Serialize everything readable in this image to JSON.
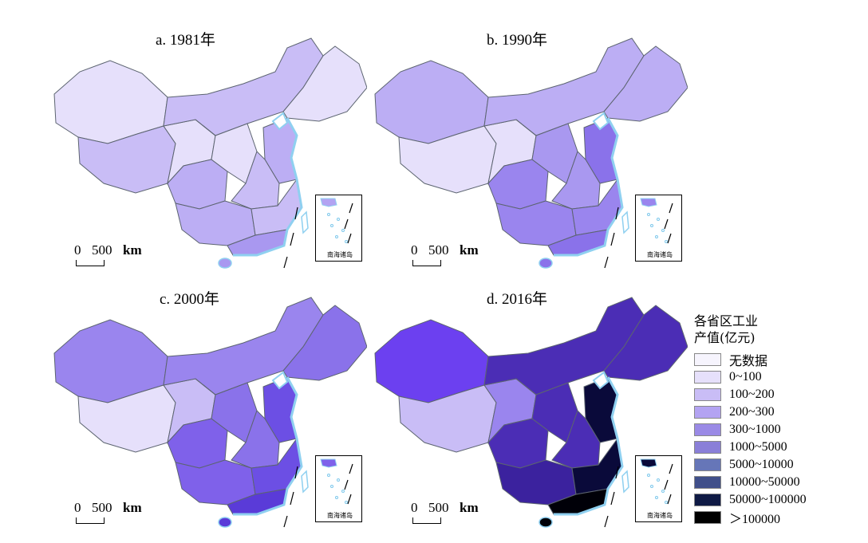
{
  "panels": [
    {
      "title": "a. 1981年",
      "fills": [
        "#e6e0fb",
        "#c9bdf6",
        "#e6e0fb",
        "#bcaef4",
        "#c9bdf6",
        "#e6e0fb",
        "#bcaef4",
        "#c9bdf6",
        "#bcaef4",
        "#e6e0fb",
        "#c9bdf6",
        "#a998f0"
      ]
    },
    {
      "title": "b. 1990年",
      "fills": [
        "#bcaef4",
        "#e6e0fb",
        "#e6e0fb",
        "#9a85ee",
        "#bcaef4",
        "#a998f0",
        "#8a72ea",
        "#a998f0",
        "#9a85ee",
        "#bcaef4",
        "#9a85ee",
        "#8a72ea"
      ]
    },
    {
      "title": "c. 2000年",
      "fills": [
        "#9a85ee",
        "#e6e0fb",
        "#c9bdf6",
        "#7f61ea",
        "#9a85ee",
        "#8a72ea",
        "#6c4fe4",
        "#8a72ea",
        "#7f61ea",
        "#8a72ea",
        "#6c4fe4",
        "#5a3bd8"
      ]
    },
    {
      "title": "d. 2016年",
      "fills": [
        "#6c40f0",
        "#c9bdf6",
        "#9a85ee",
        "#4b2db5",
        "#4b2db5",
        "#4b2db5",
        "#0a0a3a",
        "#4b2db5",
        "#3b229e",
        "#4b2db5",
        "#0a0a3a",
        "#000008"
      ]
    }
  ],
  "scalebar": {
    "zero": "0",
    "distance": "500",
    "unit": "km"
  },
  "inset_label": "南海诸岛",
  "legend": {
    "title_line1": "各省区工业",
    "title_line2": "产值(亿元)",
    "items": [
      {
        "label": "无数据",
        "color": "#f6f4fd"
      },
      {
        "label": "0~100",
        "color": "#e6e0fb"
      },
      {
        "label": "100~200",
        "color": "#c9bdf6"
      },
      {
        "label": "200~300",
        "color": "#b3a3f2"
      },
      {
        "label": "300~1000",
        "color": "#9a8ae6"
      },
      {
        "label": "1000~5000",
        "color": "#8a7fd8"
      },
      {
        "label": "5000~10000",
        "color": "#6676b8"
      },
      {
        "label": "10000~50000",
        "color": "#404f8a"
      },
      {
        "label": "50000~100000",
        "color": "#0f1a45"
      },
      {
        "label": "＞100000",
        "color": "#000000"
      }
    ]
  }
}
